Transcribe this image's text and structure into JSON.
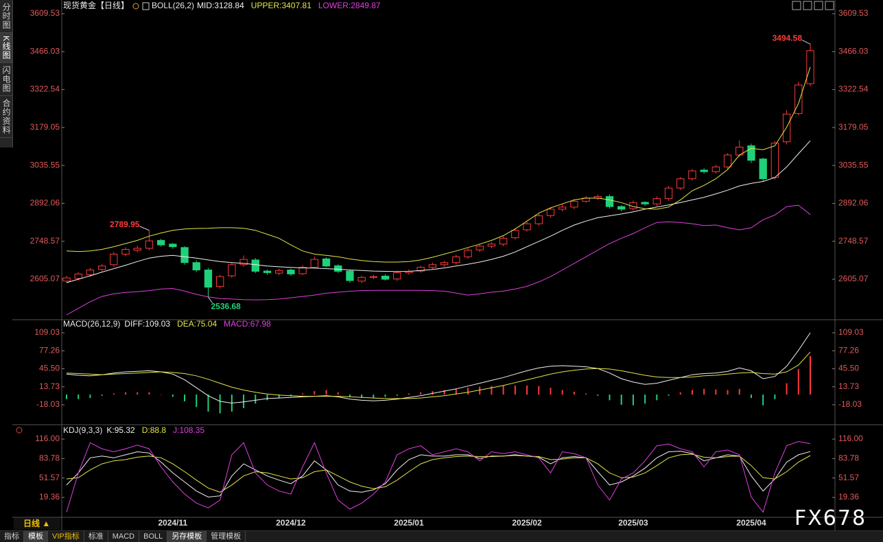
{
  "ui": {
    "sidebar": [
      "分时图",
      "K线图",
      "闪电图",
      "合约资料"
    ],
    "period": "日线 ▲",
    "tabs": [
      "指标",
      "模板",
      "VIP指标",
      "标准",
      "MACD",
      "BOLL",
      "另存模板",
      "管理模板"
    ],
    "watermark": "FX678"
  },
  "chart_data": [
    {
      "type": "candlestick",
      "title": "现货黄金【日线】",
      "indicator": "BOLL(26,2)",
      "up_color": "#ff3b3b",
      "down_color": "#1fd17a",
      "tick_color": "#e05a5a",
      "ylim": [
        2454.5,
        3635.5
      ],
      "yticks": [
        3609.53,
        3466.03,
        3322.54,
        3179.05,
        3035.55,
        2892.06,
        2748.57,
        2605.07
      ],
      "open": [
        2598,
        2608,
        2622,
        2642,
        2660,
        2700,
        2715,
        2722,
        2752,
        2738,
        2725,
        2668,
        2640,
        2578,
        2618,
        2660,
        2678,
        2636,
        2628,
        2640,
        2626,
        2650,
        2682,
        2656,
        2636,
        2598,
        2612,
        2617,
        2606,
        2630,
        2636,
        2650,
        2660,
        2668,
        2690,
        2716,
        2730,
        2738,
        2762,
        2792,
        2815,
        2846,
        2870,
        2878,
        2900,
        2912,
        2918,
        2880,
        2872,
        2896,
        2890,
        2910,
        2950,
        2985,
        3018,
        3012,
        3030,
        3075,
        3110,
        3060,
        2990,
        3125,
        3232,
        3345
      ],
      "high": [
        2618,
        2632,
        2648,
        2662,
        2708,
        2726,
        2732,
        2789.95,
        2758,
        2742,
        2730,
        2676,
        2648,
        2622,
        2668,
        2695,
        2685,
        2642,
        2645,
        2646,
        2658,
        2690,
        2688,
        2662,
        2640,
        2618,
        2622,
        2624,
        2636,
        2642,
        2656,
        2668,
        2675,
        2698,
        2722,
        2738,
        2745,
        2768,
        2798,
        2822,
        2852,
        2878,
        2888,
        2908,
        2920,
        2925,
        2926,
        2885,
        2902,
        2900,
        2918,
        2958,
        2992,
        3022,
        3025,
        3038,
        3082,
        3130,
        3118,
        3065,
        3128,
        3245,
        3352,
        3494.58
      ],
      "low": [
        2592,
        2600,
        2615,
        2635,
        2652,
        2692,
        2708,
        2715,
        2728,
        2720,
        2660,
        2632,
        2536.68,
        2570,
        2610,
        2652,
        2628,
        2622,
        2620,
        2618,
        2620,
        2645,
        2650,
        2628,
        2592,
        2590,
        2605,
        2600,
        2598,
        2622,
        2630,
        2644,
        2652,
        2660,
        2682,
        2708,
        2722,
        2730,
        2755,
        2785,
        2808,
        2838,
        2862,
        2870,
        2895,
        2905,
        2872,
        2862,
        2865,
        2882,
        2882,
        2902,
        2942,
        2978,
        3005,
        3005,
        3022,
        3068,
        3045,
        2975,
        2982,
        3115,
        3225,
        3335
      ],
      "close": [
        2610,
        2625,
        2640,
        2655,
        2700,
        2718,
        2722,
        2750,
        2735,
        2728,
        2668,
        2640,
        2575,
        2615,
        2660,
        2680,
        2635,
        2630,
        2638,
        2625,
        2650,
        2680,
        2655,
        2635,
        2600,
        2612,
        2615,
        2605,
        2630,
        2635,
        2650,
        2660,
        2668,
        2690,
        2715,
        2730,
        2738,
        2760,
        2790,
        2815,
        2845,
        2870,
        2878,
        2900,
        2912,
        2918,
        2880,
        2870,
        2895,
        2890,
        2910,
        2950,
        2985,
        3015,
        3012,
        3030,
        3075,
        3105,
        3055,
        2985,
        3120,
        3230,
        3340,
        3470
      ],
      "series": [
        {
          "name": "MID:",
          "color": "#f2f2f2",
          "values": [
            2592,
            2605,
            2618,
            2632,
            2645,
            2658,
            2672,
            2685,
            2692,
            2695,
            2690,
            2685,
            2678,
            2672,
            2668,
            2665,
            2660,
            2655,
            2652,
            2650,
            2648,
            2647,
            2645,
            2643,
            2640,
            2638,
            2636,
            2635,
            2634,
            2635,
            2638,
            2642,
            2648,
            2655,
            2662,
            2670,
            2680,
            2692,
            2708,
            2728,
            2748,
            2768,
            2790,
            2810,
            2825,
            2838,
            2845,
            2852,
            2860,
            2870,
            2878,
            2886,
            2895,
            2905,
            2915,
            2928,
            2942,
            2958,
            2968,
            2975,
            2990,
            3030,
            3080,
            3128.84
          ]
        },
        {
          "name": "UPPER:",
          "color": "#e6e64a",
          "values": [
            2712,
            2710,
            2712,
            2718,
            2728,
            2740,
            2752,
            2768,
            2780,
            2790,
            2795,
            2797,
            2798,
            2800,
            2800,
            2798,
            2790,
            2775,
            2760,
            2735,
            2712,
            2700,
            2695,
            2690,
            2682,
            2676,
            2672,
            2670,
            2670,
            2672,
            2678,
            2688,
            2700,
            2712,
            2725,
            2738,
            2752,
            2770,
            2795,
            2825,
            2855,
            2875,
            2890,
            2905,
            2912,
            2912,
            2905,
            2895,
            2880,
            2872,
            2870,
            2878,
            2905,
            2940,
            2960,
            2985,
            3020,
            3075,
            3100,
            3095,
            3110,
            3180,
            3270,
            3407.81
          ]
        },
        {
          "name": "LOWER:",
          "color": "#e040e0",
          "values": [
            2470,
            2495,
            2520,
            2540,
            2550,
            2555,
            2558,
            2562,
            2568,
            2570,
            2560,
            2548,
            2538,
            2532,
            2530,
            2528,
            2527,
            2528,
            2530,
            2535,
            2540,
            2545,
            2552,
            2556,
            2560,
            2562,
            2563,
            2563,
            2563,
            2563,
            2563,
            2562,
            2560,
            2553,
            2545,
            2550,
            2556,
            2560,
            2568,
            2578,
            2595,
            2615,
            2640,
            2665,
            2690,
            2715,
            2740,
            2760,
            2778,
            2800,
            2820,
            2822,
            2820,
            2815,
            2808,
            2810,
            2800,
            2792,
            2800,
            2830,
            2848,
            2880,
            2885,
            2849.87
          ]
        }
      ]
    },
    {
      "type": "macd",
      "title": "MACD(26,12,9)",
      "tick_color": "#e05a5a",
      "ylim": [
        -50.7,
        130.8
      ],
      "yticks": [
        109.03,
        77.26,
        {
          "value": 45.5,
          "label": "45.50"
        },
        13.73,
        -18.03
      ],
      "series": [
        {
          "name": "DIFF:",
          "color": "#f2f2f2",
          "values": [
            36,
            34,
            33,
            35,
            38,
            40,
            41,
            42,
            40,
            36,
            26,
            12,
            -2,
            -12,
            -15,
            -13,
            -10,
            -7,
            -6,
            -5,
            -4,
            -3,
            -2,
            -4,
            -8,
            -10,
            -11,
            -10,
            -8,
            -5,
            -2,
            2,
            6,
            10,
            15,
            20,
            25,
            30,
            36,
            42,
            47,
            50,
            51,
            50,
            49,
            46,
            38,
            28,
            22,
            18,
            20,
            25,
            30,
            35,
            37,
            38,
            41,
            47,
            42,
            28,
            32,
            50,
            78,
            109.03
          ]
        },
        {
          "name": "DEA:",
          "color": "#e6e64a",
          "values": [
            38,
            37,
            36,
            35,
            36,
            37,
            38,
            39,
            40,
            39,
            37,
            33,
            27,
            20,
            13,
            8,
            4,
            1,
            -1,
            -2,
            -3,
            -3,
            -3,
            -3,
            -4,
            -5,
            -6,
            -7,
            -7,
            -7,
            -6,
            -4,
            -2,
            1,
            4,
            8,
            12,
            16,
            21,
            26,
            31,
            36,
            40,
            43,
            45,
            46,
            45,
            42,
            38,
            34,
            31,
            30,
            30,
            31,
            33,
            34,
            36,
            38,
            39,
            37,
            36,
            40,
            52,
            75.04
          ]
        },
        {
          "name": "MACD:",
          "color": "#e040e0",
          "kind": "bar",
          "up_color": "#ff3b3b",
          "down_color": "#1fd17a",
          "values": [
            -8,
            -8,
            -6,
            -2,
            2,
            4,
            4,
            4,
            0,
            -4,
            -12,
            -22,
            -30,
            -33,
            -30,
            -24,
            -16,
            -10,
            -6,
            -3,
            2,
            6,
            8,
            4,
            -4,
            -6,
            -6,
            -4,
            -2,
            2,
            4,
            6,
            8,
            10,
            12,
            14,
            15,
            16,
            16,
            16,
            15,
            12,
            8,
            5,
            2,
            -2,
            -10,
            -18,
            -19,
            -16,
            -10,
            -2,
            4,
            8,
            10,
            9,
            8,
            10,
            -6,
            -19,
            -8,
            20,
            45,
            67.98
          ]
        }
      ]
    },
    {
      "type": "line",
      "title": "KDJ(9,3,3)",
      "tick_color": "#e05a5a",
      "ylim": [
        -11.3,
        136.5
      ],
      "yticks": [
        {
          "value": 116,
          "label": "116.00"
        },
        83.78,
        51.57,
        19.36
      ],
      "categories": [
        null,
        null,
        null,
        null,
        null,
        null,
        null,
        null,
        null,
        "2024/11",
        null,
        null,
        null,
        null,
        null,
        null,
        null,
        null,
        null,
        "2024/12",
        null,
        null,
        null,
        null,
        null,
        null,
        null,
        null,
        null,
        "2025/01",
        null,
        null,
        null,
        null,
        null,
        null,
        null,
        null,
        null,
        "2025/02",
        null,
        null,
        null,
        null,
        null,
        null,
        null,
        null,
        "2025/03",
        null,
        null,
        null,
        null,
        null,
        null,
        null,
        null,
        null,
        "2025/04",
        null,
        null,
        null,
        null,
        null
      ],
      "series": [
        {
          "name": "K:",
          "color": "#f2f2f2",
          "values": [
            40,
            60,
            85,
            88,
            85,
            90,
            95,
            93,
            78,
            60,
            45,
            30,
            20,
            22,
            55,
            75,
            65,
            55,
            48,
            42,
            55,
            80,
            65,
            40,
            30,
            28,
            32,
            42,
            65,
            82,
            90,
            88,
            88,
            90,
            90,
            84,
            88,
            88,
            90,
            88,
            86,
            75,
            85,
            87,
            85,
            62,
            40,
            45,
            55,
            68,
            85,
            95,
            96,
            92,
            80,
            85,
            90,
            88,
            55,
            30,
            50,
            78,
            90,
            95.32
          ]
        },
        {
          "name": "D:",
          "color": "#e6e64a",
          "values": [
            50,
            52,
            65,
            75,
            80,
            82,
            86,
            88,
            85,
            75,
            62,
            48,
            35,
            28,
            40,
            55,
            62,
            60,
            55,
            50,
            52,
            62,
            65,
            55,
            45,
            38,
            34,
            37,
            48,
            62,
            75,
            82,
            85,
            87,
            88,
            87,
            87,
            88,
            89,
            88,
            87,
            82,
            83,
            85,
            85,
            75,
            60,
            52,
            53,
            60,
            72,
            85,
            90,
            91,
            86,
            85,
            87,
            88,
            72,
            52,
            50,
            62,
            78,
            88.8
          ]
        },
        {
          "name": "J:",
          "color": "#e040e0",
          "values": [
            -5,
            60,
            110,
            100,
            95,
            100,
            106,
            100,
            70,
            45,
            25,
            10,
            2,
            15,
            90,
            110,
            60,
            40,
            30,
            25,
            70,
            110,
            60,
            15,
            0,
            10,
            25,
            45,
            90,
            100,
            105,
            90,
            95,
            100,
            95,
            80,
            95,
            92,
            95,
            90,
            85,
            60,
            95,
            92,
            85,
            40,
            15,
            50,
            60,
            80,
            105,
            108,
            100,
            95,
            70,
            95,
            98,
            90,
            20,
            -5,
            60,
            105,
            112,
            108.35
          ]
        }
      ]
    }
  ]
}
